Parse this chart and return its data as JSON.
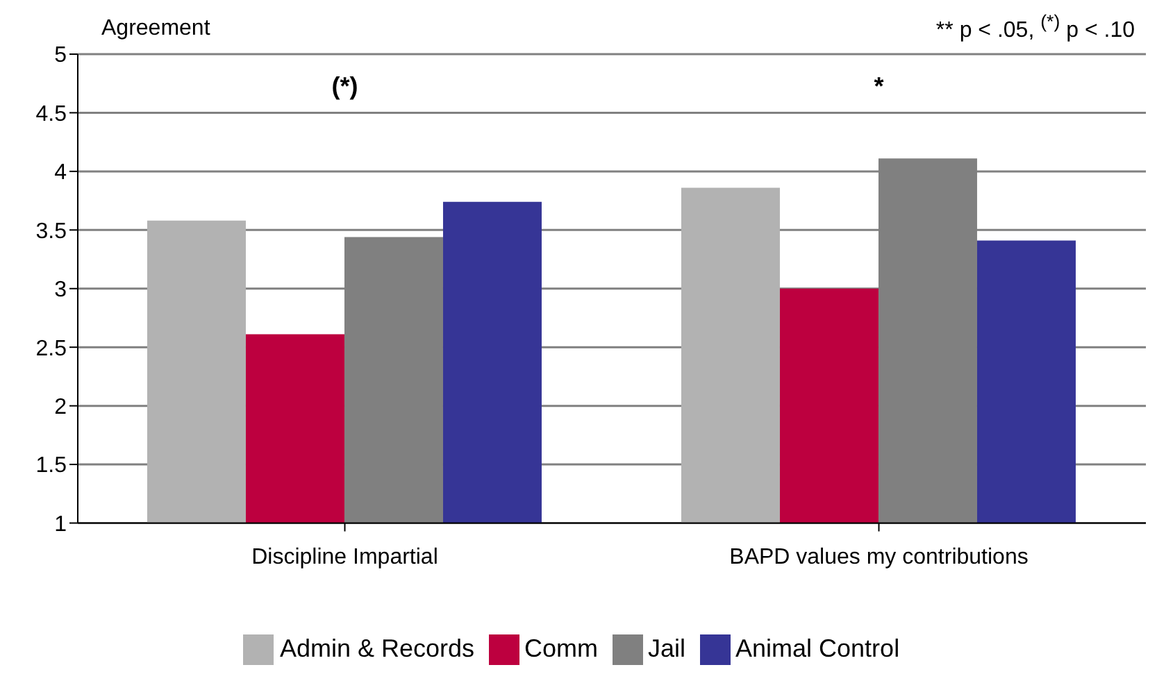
{
  "chart_data": {
    "type": "bar",
    "ylabel": "Agreement",
    "categories": [
      "Discipline Impartial",
      "BAPD values my contributions"
    ],
    "series": [
      {
        "name": "Admin & Records",
        "color": "#b2b2b2",
        "values": [
          3.58,
          3.86
        ]
      },
      {
        "name": "Comm",
        "color": "#bd003f",
        "values": [
          2.61,
          3.0
        ]
      },
      {
        "name": "Jail",
        "color": "#808080",
        "values": [
          3.44,
          4.11
        ]
      },
      {
        "name": "Animal Control",
        "color": "#363596",
        "values": [
          3.74,
          3.41
        ]
      }
    ],
    "ylim": [
      1,
      5
    ],
    "yticks": [
      1,
      1.5,
      2,
      2.5,
      3,
      3.5,
      4,
      4.5,
      5
    ],
    "grid": "y",
    "legend": "bottom",
    "annotations": [
      "(*)",
      "*",
      "** p < .05, $^{(*)}$ p < .10"
    ]
  }
}
